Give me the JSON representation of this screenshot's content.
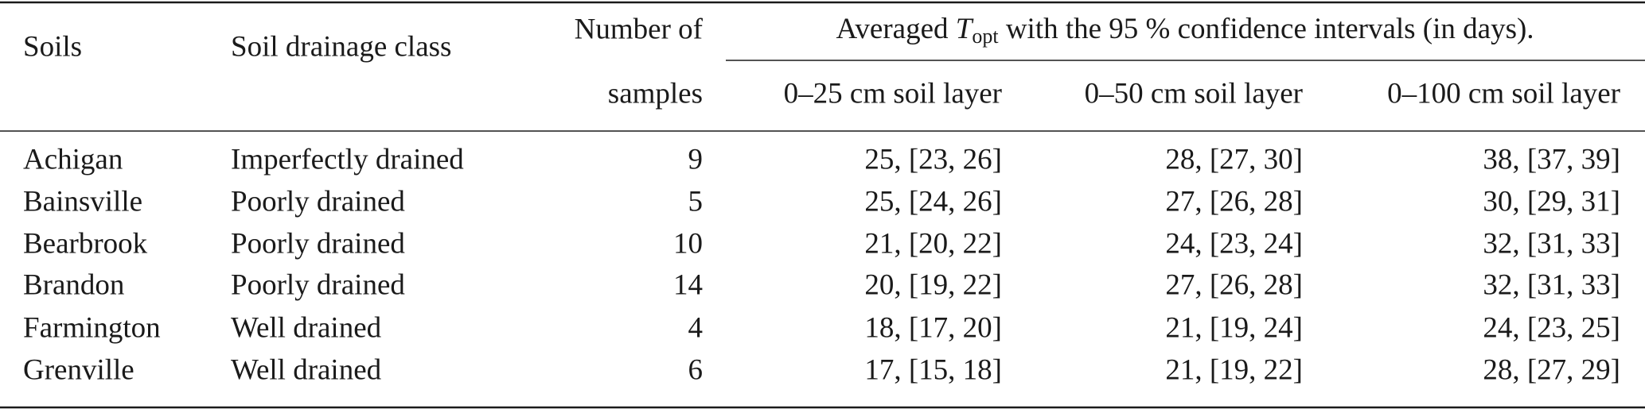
{
  "table": {
    "header": {
      "soils": "Soils",
      "drainage": "Soil drainage class",
      "samples_line1": "Number of",
      "samples_line2": "samples",
      "group": {
        "prefix": "Averaged ",
        "var": "T",
        "sub": "opt",
        "suffix": " with the 95 % confidence intervals (in days)."
      },
      "layers": [
        "0–25 cm soil layer",
        "0–50 cm soil layer",
        "0–100 cm soil layer"
      ]
    },
    "rows": [
      [
        "Achigan",
        "Imperfectly drained",
        9,
        "25, [23, 26]",
        "28, [27, 30]",
        "38, [37, 39]"
      ],
      [
        "Bainsville",
        "Poorly drained",
        5,
        "25, [24, 26]",
        "27, [26, 28]",
        "30, [29, 31]"
      ],
      [
        "Bearbrook",
        "Poorly drained",
        10,
        "21, [20, 22]",
        "24, [23, 24]",
        "32, [31, 33]"
      ],
      [
        "Brandon",
        "Poorly drained",
        14,
        "20, [19, 22]",
        "27, [26, 28]",
        "32, [31, 33]"
      ],
      [
        "Farmington",
        "Well drained",
        4,
        "18, [17, 20]",
        "21, [19, 24]",
        "24, [23, 25]"
      ],
      [
        "Grenville",
        "Well drained",
        6,
        "17, [15, 18]",
        "21, [19, 22]",
        "28, [27, 29]"
      ]
    ]
  }
}
